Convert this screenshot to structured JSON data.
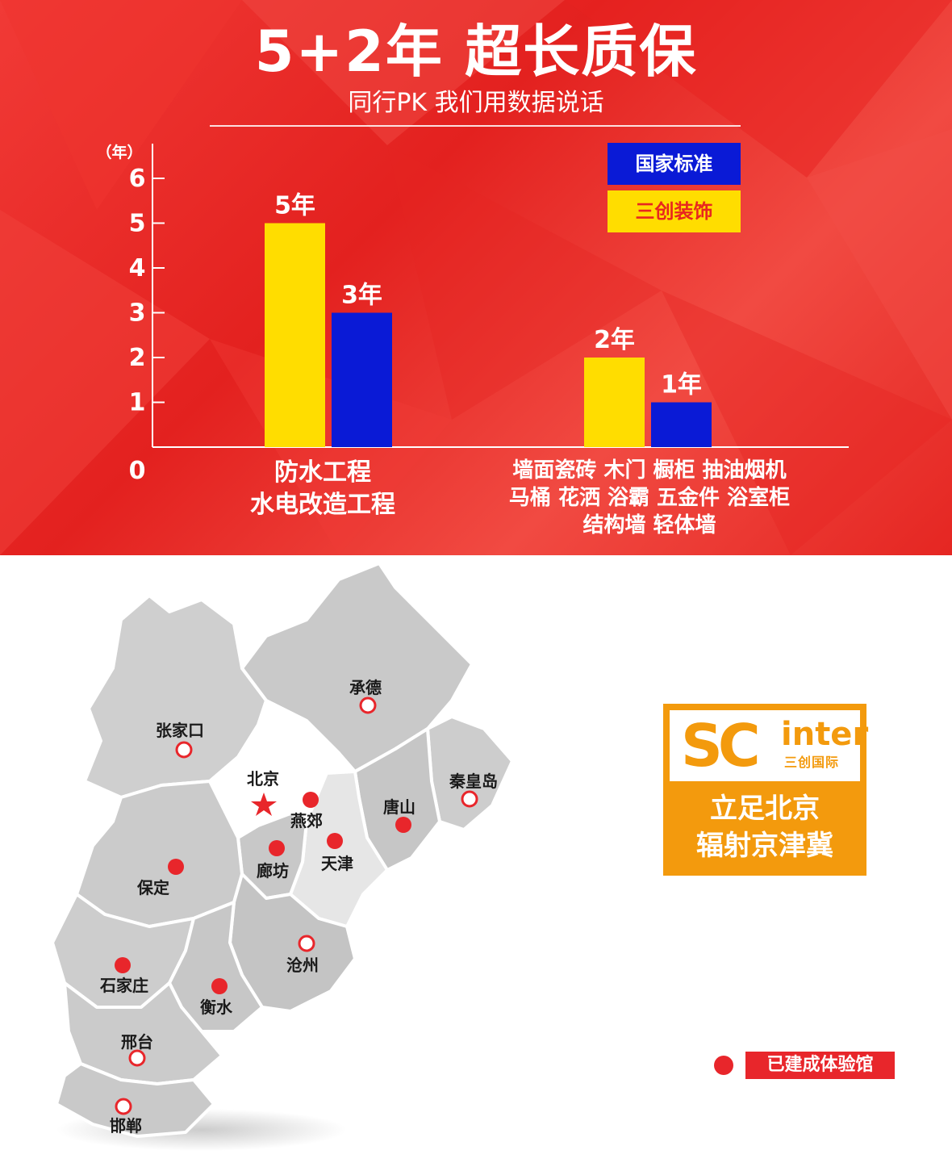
{
  "header": {
    "title": "5+2年 超长质保",
    "subtitle": "同行PK 我们用数据说话"
  },
  "legend": {
    "national": "国家标准",
    "sanchuang": "三创装饰"
  },
  "colors": {
    "background": "#e8261f",
    "yellow": "#ffdd00",
    "blue": "#0a1ad6",
    "orange": "#f39a0d",
    "marker_red": "#e8262b"
  },
  "chart_data": {
    "type": "bar",
    "ylabel": "（年）",
    "ylim": [
      0,
      6.8
    ],
    "yticks": [
      "0",
      "1",
      "2",
      "3",
      "4",
      "5",
      "6"
    ],
    "categories": [
      "防水工程 水电改造工程",
      "墙面瓷砖 木门 橱柜 抽油烟机 马桶 花洒 浴霸 五金件 浴室柜 结构墙 轻体墙"
    ],
    "category_lines": [
      [
        "防水工程",
        "水电改造工程"
      ],
      [
        "墙面瓷砖 木门 橱柜 抽油烟机",
        "马桶 花洒 浴霸 五金件 浴室柜",
        "结构墙 轻体墙"
      ]
    ],
    "series": [
      {
        "name": "三创装饰",
        "color": "#ffdd00",
        "values": [
          5,
          2
        ],
        "labels": [
          "5年",
          "2年"
        ]
      },
      {
        "name": "国家标准",
        "color": "#0a1ad6",
        "values": [
          3,
          1
        ],
        "labels": [
          "3年",
          "1年"
        ]
      }
    ],
    "legend_position": "top-right",
    "grid": false
  },
  "brand": {
    "logo_sc": "SC",
    "logo_inter": "inter",
    "logo_sub": "三创国际",
    "line1": "立足北京",
    "line2": "辐射京津冀"
  },
  "map": {
    "legend_label": "已建成体验馆",
    "cities": {
      "chengde": "承德",
      "zhangjiakou": "张家口",
      "beijing": "北京",
      "yanjiao": "燕郊",
      "qinhuangdao": "秦皇岛",
      "tangshan": "唐山",
      "tianjin": "天津",
      "langfang": "廊坊",
      "baoding": "保定",
      "cangzhou": "沧州",
      "shijiazhuang": "石家庄",
      "hengshui": "衡水",
      "xingtai": "邢台",
      "handan": "邯郸"
    }
  }
}
